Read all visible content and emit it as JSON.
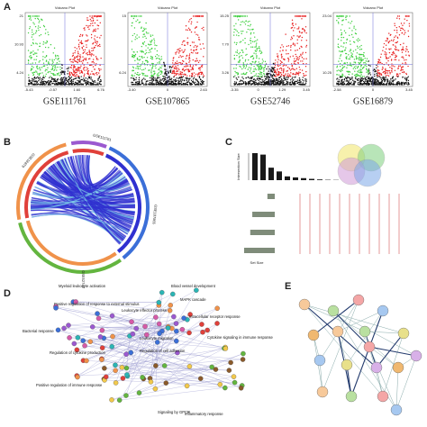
{
  "panels": {
    "a": "A",
    "b": "B",
    "c": "C",
    "d": "D",
    "e": "E"
  },
  "volcano": [
    {
      "title": "Volcano Plot",
      "dataset": "GSE111761",
      "yticks": [
        "21",
        "10.93",
        "4.24"
      ],
      "xticks": [
        "-5.43",
        "-0.57",
        "1.60",
        "6.76"
      ]
    },
    {
      "title": "Volcano Plot",
      "dataset": "GSE107865",
      "yticks": [
        "15",
        "6.24"
      ],
      "xticks": [
        "-3.40",
        "0",
        "2.63"
      ]
    },
    {
      "title": "Volcano Plot",
      "dataset": "GSE52746",
      "yticks": [
        "15.25",
        "7.70",
        "3.26"
      ],
      "xticks": [
        "-3.35",
        "0",
        "1.29",
        "3.45"
      ]
    },
    {
      "title": "Volcano Plot",
      "dataset": "GSE16879",
      "yticks": [
        "23.04",
        "10.25"
      ],
      "xticks": [
        "-2.58",
        "0",
        "3.45"
      ]
    }
  ],
  "circos": {
    "labels": [
      "GSE111761",
      "GSE107865",
      "GSE52746",
      "GSE16879"
    ]
  },
  "upset": {
    "y_label": "Intersection Size",
    "x_label": "Set Size",
    "intersections": [
      930,
      880,
      430,
      300,
      130,
      95,
      70,
      45,
      25,
      12,
      8
    ],
    "set_sizes": [
      18,
      55,
      60,
      75
    ]
  },
  "network_d": [
    "Myeloid leukocyte activation",
    "Blood vessel development",
    "MAPK cascade",
    "Intracellular receptor response",
    "Positive regulation of response to external stimulus",
    "Leukocyte effector process",
    "Cytokine signaling in immune response",
    "Bacterial response",
    "Leukocyte migration",
    "Regulation of cytokine production",
    "Regulation of cell adhesion",
    "Positive regulation of immune response",
    "Signaling by GPCR",
    "Inflammatory response"
  ]
}
